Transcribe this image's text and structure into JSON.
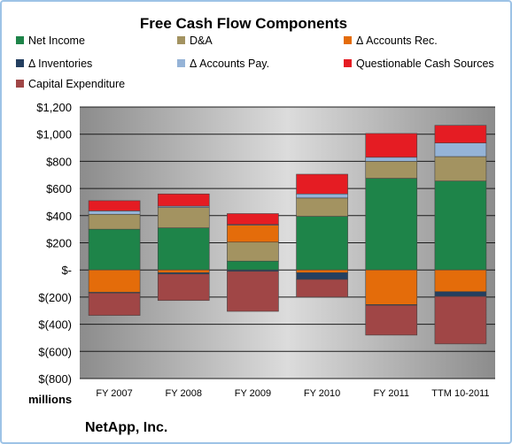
{
  "chart_data": {
    "type": "bar",
    "stacked": true,
    "title": "Free Cash Flow Components",
    "company": "NetApp, Inc.",
    "units_label": "millions",
    "categories": [
      "FY 2007",
      "FY 2008",
      "FY 2009",
      "FY 2010",
      "FY 2011",
      "TTM 10-2011"
    ],
    "y_tick_labels": [
      "$(800)",
      "$(600)",
      "$(400)",
      "$(200)",
      "$-",
      "$200",
      "$400",
      "$600",
      "$800",
      "$1,000",
      "$1,200"
    ],
    "ylim": [
      -800,
      1200
    ],
    "grid": true,
    "legend_position": "top",
    "series": [
      {
        "name": "Net Income",
        "color": "#1e8449",
        "values": [
          300,
          310,
          65,
          395,
          675,
          655
        ]
      },
      {
        "name": "D&A",
        "color": "#a39361",
        "values": [
          110,
          150,
          140,
          135,
          125,
          180
        ]
      },
      {
        "name": "Δ Accounts Rec.",
        "color": "#e46c0a",
        "values": [
          -165,
          -20,
          125,
          -20,
          -255,
          -160
        ]
      },
      {
        "name": "Δ Inventories",
        "color": "#243f60",
        "values": [
          -5,
          -10,
          -10,
          -50,
          -5,
          -35
        ]
      },
      {
        "name": "Δ Accounts Pay.",
        "color": "#95b3d7",
        "values": [
          25,
          10,
          5,
          30,
          30,
          100
        ]
      },
      {
        "name": "Questionable Cash Sources",
        "color": "#e51c23",
        "values": [
          75,
          90,
          80,
          145,
          175,
          130
        ]
      },
      {
        "name": "Capital Expenditure",
        "color": "#a04646",
        "values": [
          -165,
          -195,
          -295,
          -130,
          -220,
          -350
        ]
      }
    ]
  }
}
